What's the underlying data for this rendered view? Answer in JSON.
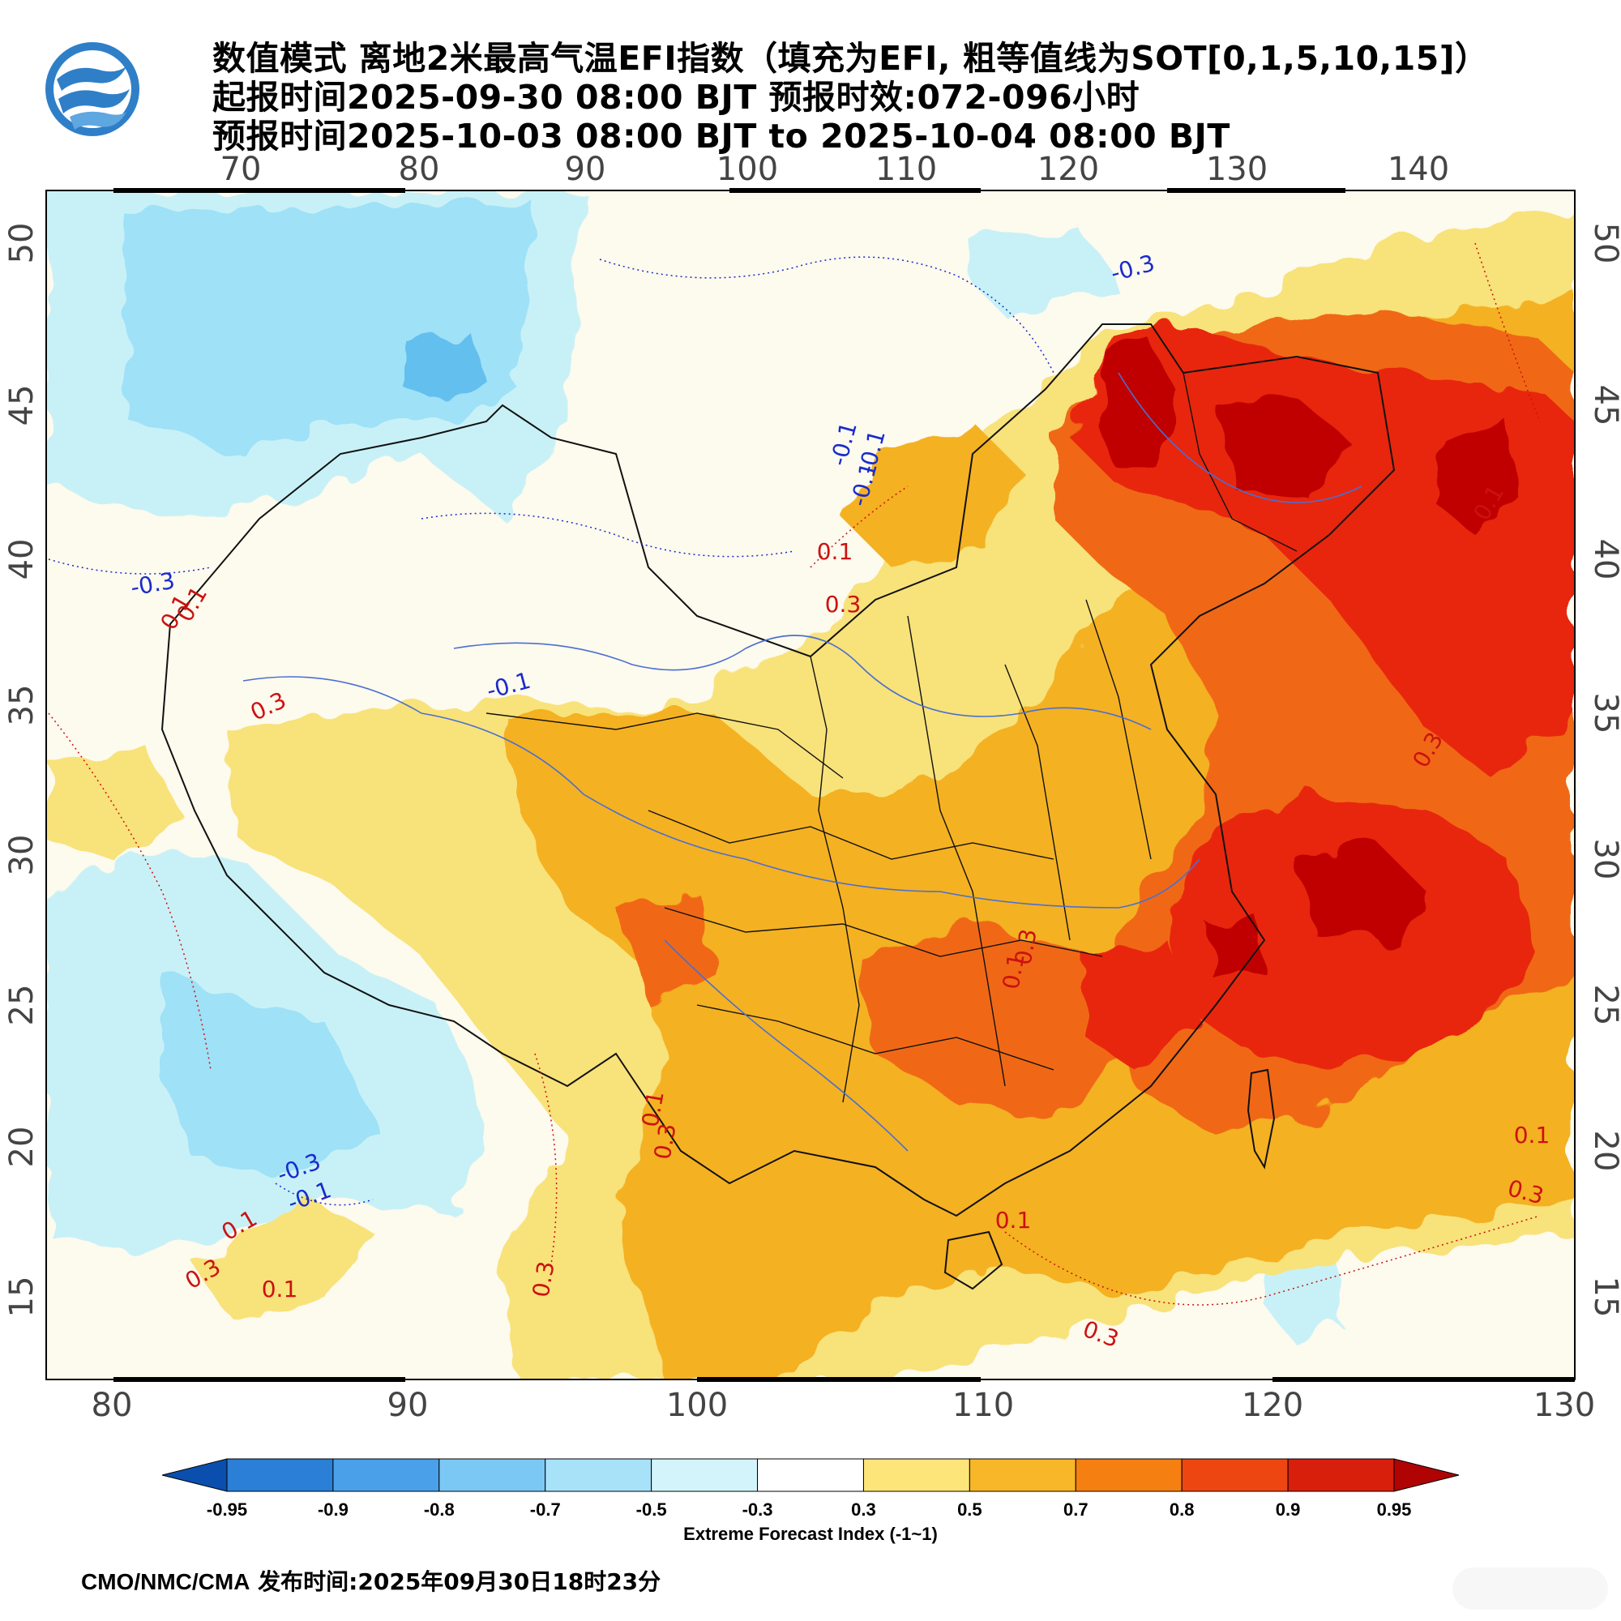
{
  "title": {
    "line1": "数值模式 离地2米最高气温EFI指数（填充为EFI, 粗等值线为SOT[0,1,5,10,15]）",
    "line2": "起报时间2025-09-30 08:00 BJT 预报时效:072-096小时",
    "line3": "预报时间2025-10-03 08:00 BJT to 2025-10-04 08:00 BJT"
  },
  "map": {
    "top_lon_labels": [
      "70",
      "80",
      "90",
      "100",
      "110",
      "120",
      "130",
      "140"
    ],
    "bottom_lon_labels": [
      "80",
      "90",
      "100",
      "110",
      "120",
      "130"
    ],
    "left_lat_labels": [
      "50",
      "45",
      "40",
      "35",
      "30",
      "25",
      "20",
      "15"
    ],
    "right_lat_labels": [
      "50",
      "45",
      "40",
      "35",
      "30",
      "25",
      "20",
      "15"
    ],
    "contour_labels": [
      "-0.3",
      "-0.1",
      "-0.1",
      "-0.1",
      "0.1",
      "0.3",
      "-0.3",
      "0.1",
      "0.3",
      "-0.1",
      "0.1",
      "0.3",
      "0.1",
      "0.3",
      "0.3",
      "0.1",
      "0.3",
      "0.1",
      "0.3",
      "0.1",
      "-0.3",
      "-0.1",
      "0.1",
      "0.3",
      "0.1",
      "0.3",
      "0.1"
    ],
    "colors": {
      "very_high": "#c00000",
      "high": "#e8280e",
      "mid_high": "#f06812",
      "mid": "#f4b124",
      "low_warm": "#f8e27a",
      "neutral": "#fdfaee",
      "low_cool": "#c8f1f7",
      "cool": "#9fe1f7",
      "cold": "#64bfee",
      "boundary": "#111111",
      "river": "#4a6fd1",
      "contour_warm": "#cc1111",
      "contour_cool": "#1a2bcc"
    }
  },
  "colorbar": {
    "ticks": [
      "-0.95",
      "-0.9",
      "-0.8",
      "-0.7",
      "-0.5",
      "-0.3",
      "0.3",
      "0.5",
      "0.7",
      "0.8",
      "0.9",
      "0.95"
    ],
    "colors": [
      "#0b4fae",
      "#2b7fd6",
      "#4aa0e9",
      "#7cc8f4",
      "#a7e2f8",
      "#d2f4fa",
      "#ffffff",
      "#fde57a",
      "#f8b728",
      "#f57f10",
      "#ee4610",
      "#d81f0c",
      "#b00303"
    ],
    "label": "Extreme Forecast Index (-1~1)"
  },
  "footer": {
    "source": "CMO/NMC/CMA",
    "issued": "发布时间:2025年09月30日18时23分"
  }
}
